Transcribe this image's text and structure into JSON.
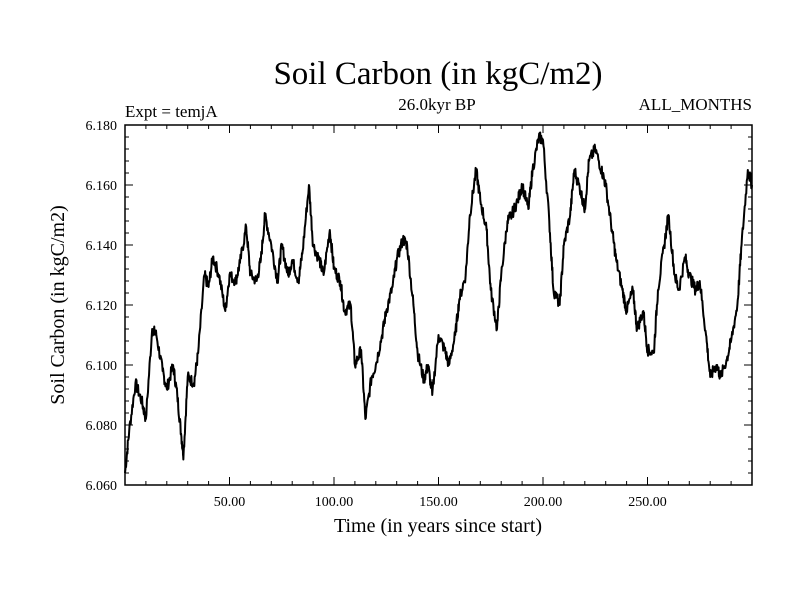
{
  "chart_data": {
    "type": "line",
    "title": "Soil Carbon (in kgC/m2)",
    "subtitle_left": "Expt = temjA",
    "subtitle_center": "26.0kyr BP",
    "subtitle_right": "ALL_MONTHS",
    "xlabel": "Time (in years since start)",
    "ylabel": "Soil Carbon (in kgC/m2)",
    "xlim": [
      0,
      300
    ],
    "ylim": [
      6.06,
      6.18
    ],
    "x_ticks": [
      50,
      100,
      150,
      200,
      250
    ],
    "x_tick_labels": [
      "50.00",
      "100.00",
      "150.00",
      "200.00",
      "250.00"
    ],
    "y_ticks": [
      6.06,
      6.08,
      6.1,
      6.12,
      6.14,
      6.16,
      6.18
    ],
    "y_tick_labels": [
      "6.060",
      "6.080",
      "6.100",
      "6.120",
      "6.140",
      "6.160",
      "6.180"
    ],
    "line_color": "#000000",
    "series": [
      {
        "name": "Soil Carbon",
        "x": [
          0,
          2,
          5,
          8,
          10,
          13,
          15,
          18,
          20,
          23,
          25,
          27,
          28,
          30,
          33,
          35,
          38,
          40,
          42,
          45,
          48,
          50,
          53,
          55,
          58,
          60,
          63,
          65,
          67,
          70,
          73,
          75,
          78,
          80,
          83,
          85,
          88,
          90,
          93,
          95,
          98,
          100,
          103,
          105,
          108,
          110,
          113,
          115,
          118,
          120,
          123,
          125,
          128,
          130,
          133,
          135,
          138,
          140,
          143,
          145,
          147,
          150,
          153,
          155,
          158,
          160,
          163,
          165,
          168,
          170,
          173,
          175,
          178,
          180,
          183,
          185,
          188,
          190,
          193,
          195,
          198,
          200,
          203,
          205,
          208,
          210,
          213,
          215,
          218,
          220,
          222,
          225,
          228,
          230,
          233,
          235,
          238,
          240,
          243,
          245,
          248,
          250,
          253,
          255,
          258,
          260,
          263,
          265,
          268,
          270,
          273,
          275,
          278,
          280,
          283,
          285,
          288,
          290,
          293,
          295,
          298,
          300
        ],
        "values": [
          6.064,
          6.078,
          6.094,
          6.088,
          6.082,
          6.112,
          6.11,
          6.098,
          6.092,
          6.1,
          6.09,
          6.076,
          6.07,
          6.096,
          6.094,
          6.104,
          6.13,
          6.126,
          6.136,
          6.13,
          6.118,
          6.13,
          6.128,
          6.134,
          6.146,
          6.13,
          6.128,
          6.135,
          6.15,
          6.14,
          6.128,
          6.14,
          6.13,
          6.135,
          6.128,
          6.138,
          6.16,
          6.14,
          6.135,
          6.13,
          6.145,
          6.132,
          6.128,
          6.118,
          6.12,
          6.1,
          6.105,
          6.082,
          6.096,
          6.1,
          6.11,
          6.118,
          6.126,
          6.135,
          6.142,
          6.14,
          6.12,
          6.104,
          6.095,
          6.1,
          6.09,
          6.11,
          6.105,
          6.1,
          6.11,
          6.122,
          6.13,
          6.15,
          6.165,
          6.155,
          6.145,
          6.125,
          6.112,
          6.13,
          6.148,
          6.15,
          6.155,
          6.16,
          6.152,
          6.165,
          6.176,
          6.175,
          6.148,
          6.125,
          6.12,
          6.14,
          6.15,
          6.165,
          6.158,
          6.152,
          6.168,
          6.172,
          6.165,
          6.16,
          6.145,
          6.135,
          6.125,
          6.118,
          6.125,
          6.112,
          6.118,
          6.105,
          6.104,
          6.125,
          6.14,
          6.15,
          6.13,
          6.125,
          6.136,
          6.13,
          6.125,
          6.128,
          6.11,
          6.096,
          6.1,
          6.096,
          6.102,
          6.108,
          6.12,
          6.14,
          6.165,
          6.16
        ]
      }
    ]
  }
}
